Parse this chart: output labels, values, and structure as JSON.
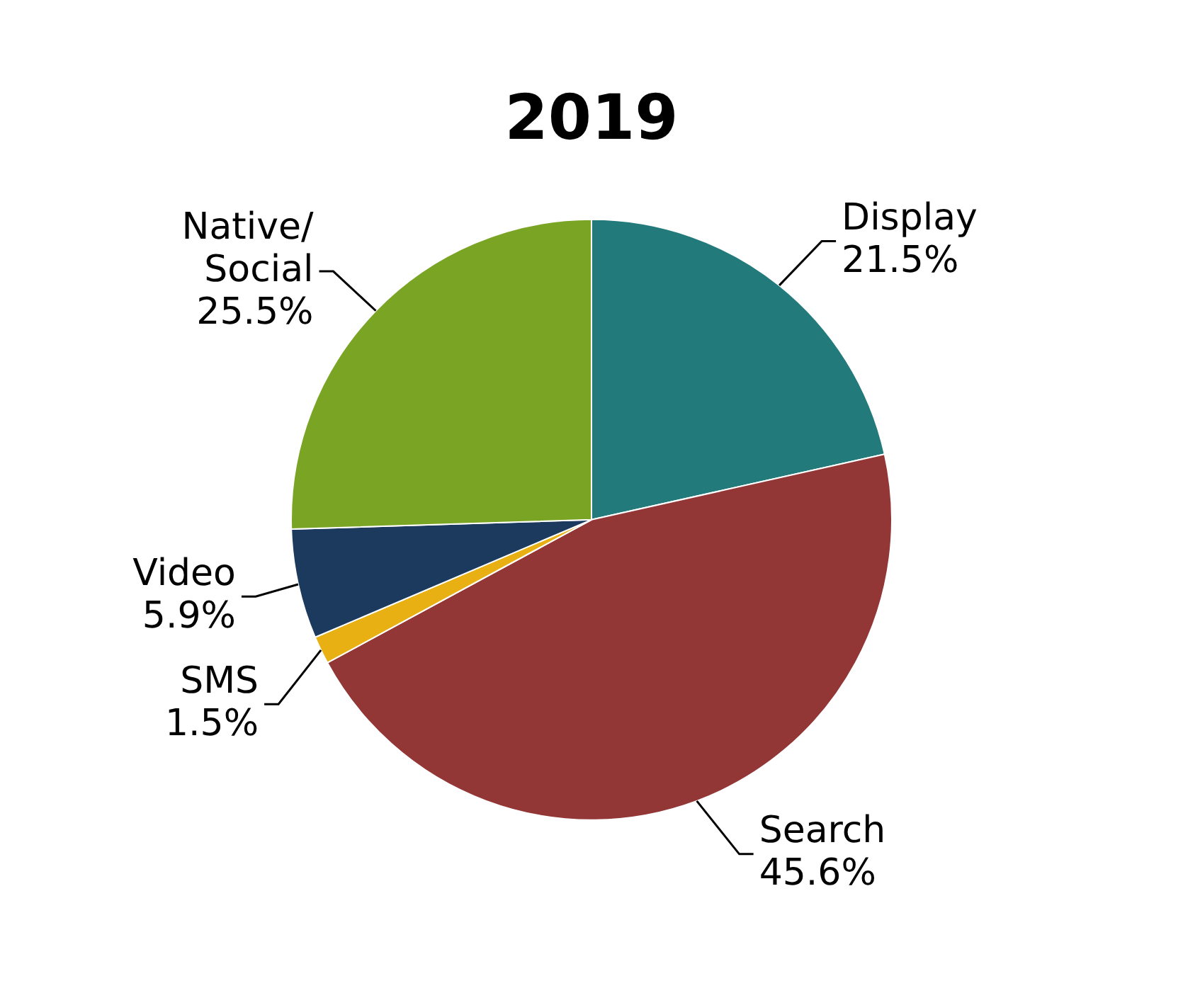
{
  "chart_data": {
    "type": "pie",
    "title": "2019",
    "categories": [
      "Display",
      "Search",
      "SMS",
      "Video",
      "Native/Social"
    ],
    "values": [
      21.5,
      45.6,
      1.5,
      5.9,
      25.5
    ],
    "value_labels": [
      "21.5%",
      "45.6%",
      "1.5%",
      "5.9%",
      "25.5%"
    ],
    "colors": [
      "#237a7b",
      "#933636",
      "#e8b012",
      "#1b3a5e",
      "#7aa524"
    ],
    "legend": false
  }
}
